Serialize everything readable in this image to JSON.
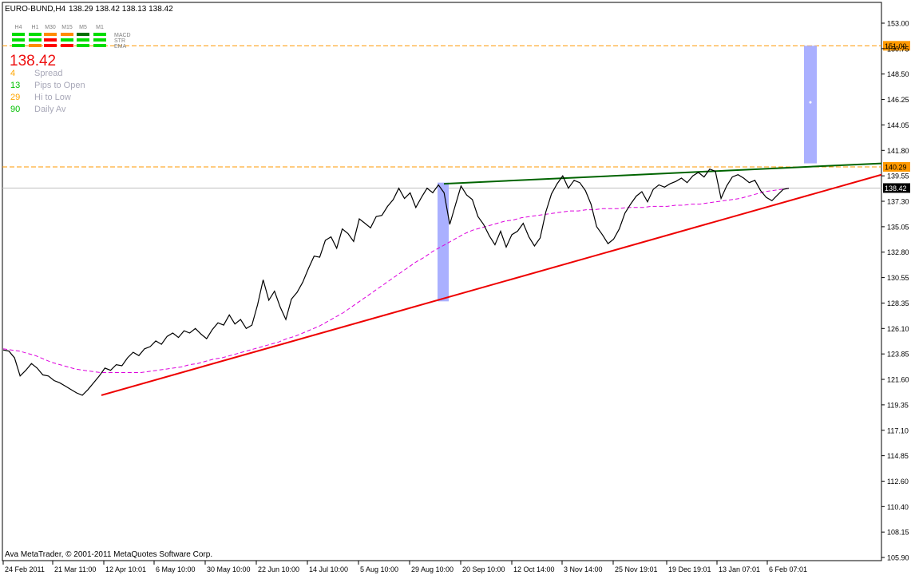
{
  "header": {
    "symbol": "EURO-BUND,H4",
    "ohlc": "138.29 138.42 138.13 138.42"
  },
  "indicator_panel": {
    "timeframes": [
      "H4",
      "H1",
      "M30",
      "M15",
      "M5",
      "M1"
    ],
    "rows": [
      {
        "label": "MACD",
        "colors": [
          "#00dd00",
          "#00dd00",
          "#ff8c00",
          "#ff8c00",
          "#007000",
          "#00dd00"
        ]
      },
      {
        "label": "STR",
        "colors": [
          "#00dd00",
          "#00dd00",
          "#ff0000",
          "#00dd00",
          "#00dd00",
          "#00dd00"
        ]
      },
      {
        "label": "EMA",
        "colors": [
          "#00dd00",
          "#ff8c00",
          "#ff0000",
          "#ff0000",
          "#00dd00",
          "#00dd00"
        ]
      }
    ]
  },
  "info": {
    "price": "138.42",
    "stats": [
      {
        "value": "4",
        "label": "Spread",
        "value_color": "#ffa500"
      },
      {
        "value": "13",
        "label": "Pips to Open",
        "value_color": "#00c000"
      },
      {
        "value": "29",
        "label": "Hi to Low",
        "value_color": "#ffa500"
      },
      {
        "value": "90",
        "label": "Daily Av",
        "value_color": "#00c000"
      }
    ]
  },
  "footer": {
    "copyright": "Ava MetaTrader, © 2001-2011 MetaQuotes Software Corp."
  },
  "chart_data": {
    "type": "line",
    "ylim": [
      105.9,
      154.2
    ],
    "y_ticks": [
      "153.00",
      "150.75",
      "148.50",
      "146.25",
      "144.05",
      "141.80",
      "139.55",
      "137.30",
      "135.05",
      "132.80",
      "130.55",
      "128.35",
      "126.10",
      "123.85",
      "121.60",
      "119.35",
      "117.10",
      "114.85",
      "112.60",
      "110.40",
      "108.15",
      "105.90"
    ],
    "x_ticks": [
      "24 Feb 2011",
      "21 Mar 11:00",
      "12 Apr 10:01",
      "6 May 10:00",
      "30 May 10:00",
      "22 Jun 10:00",
      "14 Jul 10:00",
      "5 Aug 10:00",
      "29 Aug 10:00",
      "20 Sep 10:00",
      "12 Oct 14:00",
      "3 Nov 14:00",
      "25 Nov 19:01",
      "19 Dec 19:01",
      "13 Jan 07:01",
      "6 Feb 07:01"
    ],
    "current_price": "138.42",
    "level_labels": [
      {
        "label": "151.00",
        "value": 151.0
      },
      {
        "label": "140.29",
        "value": 140.29
      }
    ],
    "colors": {
      "price": "#000000",
      "ma": "#dd00dd",
      "support": "#ee0000",
      "resistance": "#006400",
      "level": "#ff9900",
      "measure": "#aab0ff"
    },
    "series": [
      {
        "values": [
          124.1,
          124.0,
          123.4,
          121.8,
          122.3,
          122.9,
          122.5,
          121.9,
          121.8,
          121.4,
          121.2,
          120.9,
          120.6,
          120.3,
          120.1,
          120.6,
          121.2,
          121.8,
          122.5,
          122.3,
          122.8,
          122.7,
          123.4,
          123.9,
          123.6,
          124.2,
          124.4,
          124.9,
          124.6,
          125.3,
          125.6,
          125.2,
          125.8,
          125.6,
          126.0,
          125.5,
          125.1,
          125.9,
          126.5,
          126.3,
          127.2,
          126.4,
          126.8,
          126.0,
          126.3,
          128.1,
          130.3,
          128.5,
          129.3,
          127.9,
          126.8,
          128.6,
          129.2,
          130.1,
          131.3,
          132.4,
          132.3,
          133.8,
          134.1,
          133.1,
          134.8,
          134.4,
          133.7,
          135.7,
          135.3,
          134.9,
          135.9,
          136.0,
          136.8,
          137.4,
          138.4,
          137.5,
          138.0,
          136.7,
          137.6,
          138.4,
          138.0,
          138.7,
          138.0,
          135.2,
          136.9,
          138.6,
          137.8,
          137.4,
          135.9,
          135.2,
          134.2,
          133.4,
          134.6,
          133.2,
          134.3,
          134.6,
          135.3,
          134.1,
          133.3,
          134.0,
          136.3,
          137.9,
          138.8,
          139.5,
          138.4,
          139.1,
          138.9,
          138.2,
          137.0,
          135.0,
          134.3,
          133.5,
          133.9,
          134.8,
          136.2,
          137.0,
          137.7,
          138.1,
          137.2,
          138.3,
          138.7,
          138.5,
          138.8,
          139.0,
          139.3,
          138.9,
          139.5,
          139.8,
          139.4,
          140.1,
          139.9,
          137.5,
          138.6,
          139.4,
          139.6,
          139.3,
          138.9,
          139.1,
          138.2,
          137.6,
          137.3,
          137.8,
          138.3,
          138.4
        ]
      },
      {
        "values": [
          124.2,
          124.1,
          124.0,
          123.8,
          123.6,
          123.3,
          123.0,
          122.8,
          122.6,
          122.4,
          122.3,
          122.2,
          122.1,
          122.1,
          122.1,
          122.1,
          122.1,
          122.1,
          122.2,
          122.3,
          122.4,
          122.5,
          122.6,
          122.8,
          122.9,
          123.1,
          123.3,
          123.4,
          123.6,
          123.8,
          124.0,
          124.2,
          124.4,
          124.6,
          124.8,
          125.1,
          125.3,
          125.6,
          125.9,
          126.2,
          126.6,
          127.0,
          127.4,
          127.9,
          128.4,
          128.9,
          129.4,
          129.9,
          130.4,
          130.9,
          131.4,
          131.9,
          132.3,
          132.8,
          133.2,
          133.6,
          134.0,
          134.4,
          134.7,
          134.9,
          135.1,
          135.3,
          135.5,
          135.6,
          135.8,
          135.9,
          136.0,
          136.1,
          136.2,
          136.3,
          136.4,
          136.4,
          136.5,
          136.5,
          136.6,
          136.6,
          136.6,
          136.7,
          136.7,
          136.7,
          136.8,
          136.8,
          136.8,
          136.9,
          136.9,
          137.0,
          137.0,
          137.1,
          137.2,
          137.3,
          137.4,
          137.5,
          137.7,
          137.9,
          138.1,
          138.2,
          138.3,
          138.4
        ]
      }
    ]
  }
}
